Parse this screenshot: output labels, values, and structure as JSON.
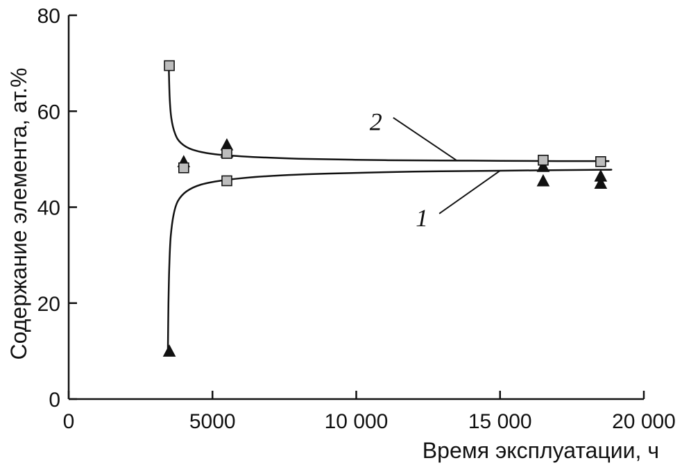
{
  "chart_data": {
    "type": "scatter",
    "xlabel": "Время эксплуатации, ч",
    "ylabel": "Содержание элемента, ат.%",
    "xlim": [
      0,
      20000
    ],
    "ylim": [
      0,
      80
    ],
    "x_ticks": [
      {
        "value": 0,
        "label": "0"
      },
      {
        "value": 5000,
        "label": "5000"
      },
      {
        "value": 10000,
        "label": "10 000"
      },
      {
        "value": 15000,
        "label": "15 000"
      },
      {
        "value": 20000,
        "label": "20 000"
      }
    ],
    "y_ticks": [
      {
        "value": 0,
        "label": "0"
      },
      {
        "value": 20,
        "label": "20"
      },
      {
        "value": 40,
        "label": "40"
      },
      {
        "value": 60,
        "label": "60"
      },
      {
        "value": 80,
        "label": "80"
      }
    ],
    "grid": false,
    "series": [
      {
        "id": "triangles",
        "marker": "triangle",
        "color": "#111111",
        "points": [
          {
            "x": 3500,
            "y": 10
          },
          {
            "x": 4000,
            "y": 49.5
          },
          {
            "x": 5500,
            "y": 53
          },
          {
            "x": 5500,
            "y": 51.5
          },
          {
            "x": 16500,
            "y": 48.5
          },
          {
            "x": 16500,
            "y": 45.5
          },
          {
            "x": 18500,
            "y": 46.5
          },
          {
            "x": 18500,
            "y": 45
          }
        ]
      },
      {
        "id": "squares",
        "marker": "square",
        "color": "#bdbdbd",
        "points": [
          {
            "x": 3500,
            "y": 69.5
          },
          {
            "x": 4000,
            "y": 48.2
          },
          {
            "x": 5500,
            "y": 51.2
          },
          {
            "x": 5500,
            "y": 45.5
          },
          {
            "x": 16500,
            "y": 49.8
          },
          {
            "x": 18500,
            "y": 49.5
          }
        ]
      }
    ],
    "curves": [
      {
        "label": "1",
        "points": [
          {
            "x": 3450,
            "y": 10
          },
          {
            "x": 3470,
            "y": 20
          },
          {
            "x": 3500,
            "y": 28
          },
          {
            "x": 3550,
            "y": 34
          },
          {
            "x": 3650,
            "y": 38.5
          },
          {
            "x": 3800,
            "y": 41.3
          },
          {
            "x": 4100,
            "y": 43.3
          },
          {
            "x": 4600,
            "y": 44.7
          },
          {
            "x": 5500,
            "y": 45.7
          },
          {
            "x": 7000,
            "y": 46.5
          },
          {
            "x": 9000,
            "y": 47.0
          },
          {
            "x": 12000,
            "y": 47.4
          },
          {
            "x": 15000,
            "y": 47.6
          },
          {
            "x": 18500,
            "y": 47.8
          },
          {
            "x": 18800,
            "y": 47.8
          }
        ]
      },
      {
        "label": "2",
        "points": [
          {
            "x": 3480,
            "y": 69.5
          },
          {
            "x": 3510,
            "y": 63
          },
          {
            "x": 3570,
            "y": 58.5
          },
          {
            "x": 3700,
            "y": 55.3
          },
          {
            "x": 3900,
            "y": 53.4
          },
          {
            "x": 4300,
            "y": 52.0
          },
          {
            "x": 5000,
            "y": 51.1
          },
          {
            "x": 6000,
            "y": 50.6
          },
          {
            "x": 8000,
            "y": 50.1
          },
          {
            "x": 11000,
            "y": 49.8
          },
          {
            "x": 14000,
            "y": 49.7
          },
          {
            "x": 17000,
            "y": 49.6
          },
          {
            "x": 18800,
            "y": 49.6
          }
        ]
      }
    ],
    "curve_labels": [
      {
        "text": "1",
        "x": 12500,
        "y": 37.5,
        "leader_to": {
          "x": 15000,
          "y": 47.6
        }
      },
      {
        "text": "2",
        "x": 10900,
        "y": 57.5,
        "leader_to": {
          "x": 13500,
          "y": 49.7
        }
      }
    ]
  }
}
